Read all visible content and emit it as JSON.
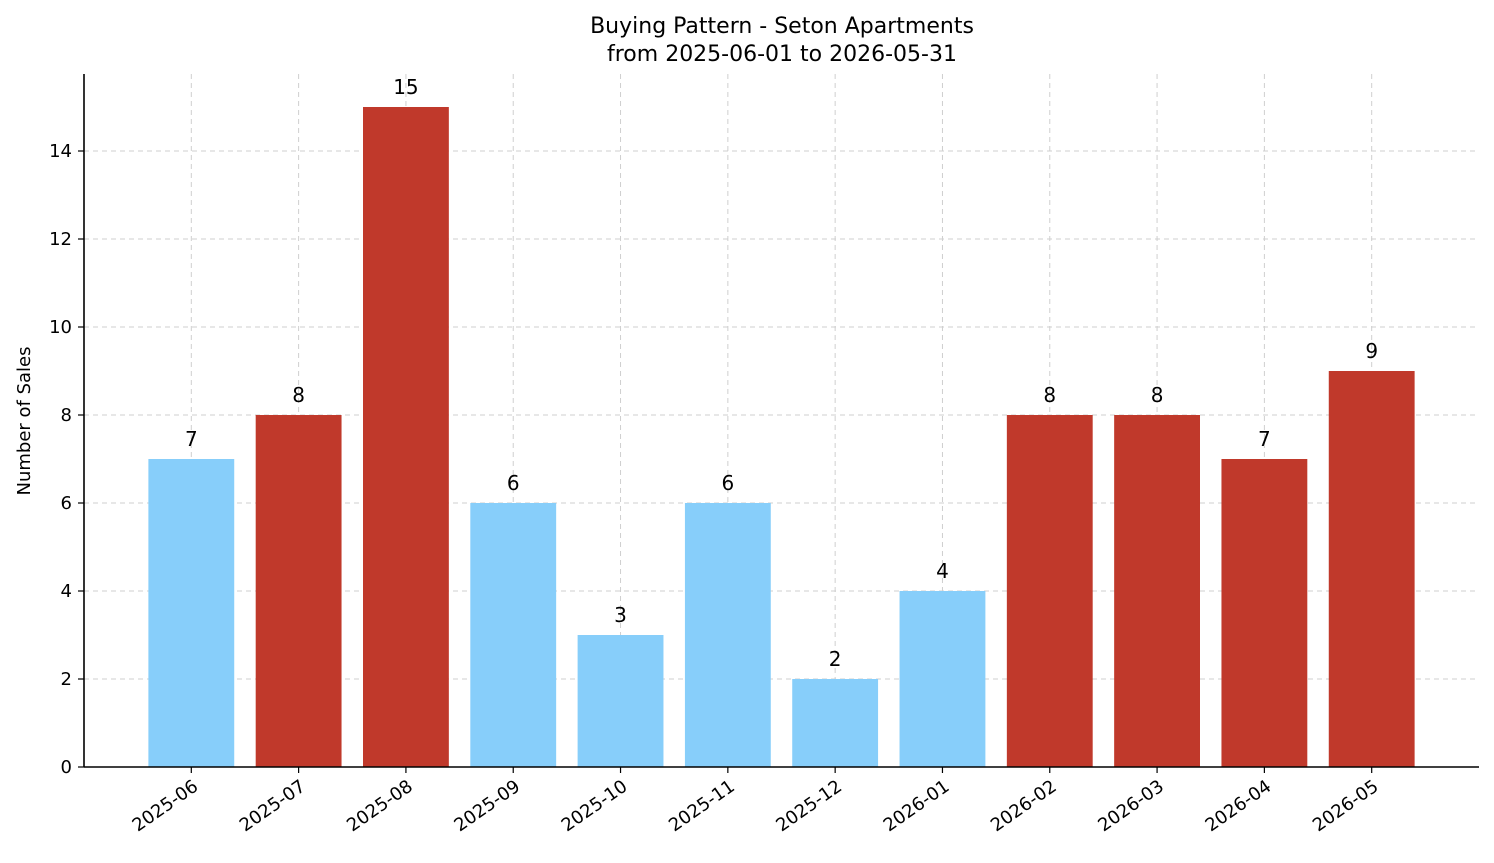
{
  "chart_data": {
    "type": "bar",
    "title": "Buying Pattern - Seton Apartments",
    "subtitle": "from 2025-06-01 to 2026-05-31",
    "xlabel": "",
    "ylabel": "Number of Sales",
    "categories": [
      "2025-06",
      "2025-07",
      "2025-08",
      "2025-09",
      "2025-10",
      "2025-11",
      "2025-12",
      "2026-01",
      "2026-02",
      "2026-03",
      "2026-04",
      "2026-05"
    ],
    "values": [
      7,
      8,
      15,
      6,
      3,
      6,
      2,
      4,
      8,
      8,
      7,
      9
    ],
    "bar_colors": [
      "#87CEFA",
      "#C0392B",
      "#C0392B",
      "#87CEFA",
      "#87CEFA",
      "#87CEFA",
      "#87CEFA",
      "#87CEFA",
      "#C0392B",
      "#C0392B",
      "#C0392B",
      "#C0392B"
    ],
    "ylim": [
      0,
      15.75
    ],
    "yticks": [
      0,
      2,
      4,
      6,
      8,
      10,
      12,
      14
    ],
    "grid": true,
    "legend": "none"
  }
}
